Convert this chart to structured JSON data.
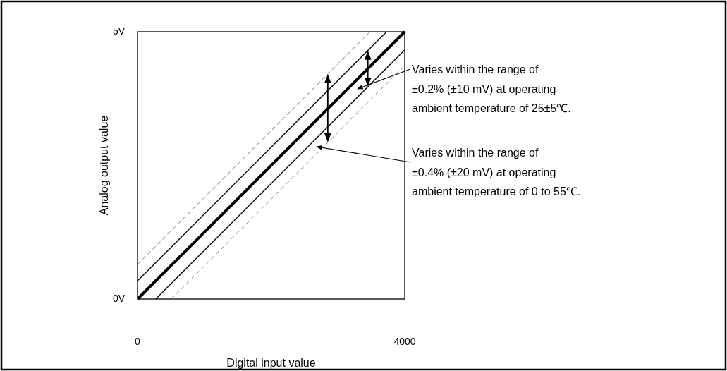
{
  "chart_data": {
    "type": "line",
    "xlabel": "Digital input value",
    "ylabel": "Analog output value",
    "xlim": [
      0,
      4000
    ],
    "ylim": [
      0,
      5
    ],
    "xticks": [
      0,
      4000
    ],
    "yticks": [
      {
        "value": 0,
        "label": "0V"
      },
      {
        "value": 5,
        "label": "5V"
      }
    ],
    "grid": false,
    "series": [
      {
        "color": "#000000",
        "x": [
          0,
          4000
        ],
        "values": [
          0,
          5
        ],
        "line_style": "solid"
      },
      {
        "color": "#000000",
        "x": [
          0,
          3728
        ],
        "values": [
          0.34,
          5
        ],
        "line_style": "solid"
      },
      {
        "color": "#000000",
        "x": [
          272,
          4000
        ],
        "values": [
          0,
          4.66
        ],
        "line_style": "solid"
      },
      {
        "color": "#666666",
        "x": [
          0,
          3480
        ],
        "values": [
          0.65,
          5
        ],
        "line_style": "dashed"
      },
      {
        "color": "#666666",
        "x": [
          504,
          4000
        ],
        "values": [
          0,
          4.37
        ],
        "line_style": "dashed"
      }
    ],
    "annotations": [
      "Varies within the range of\n±0.2% (±10 mV) at operating\nambient temperature of 25±5℃.",
      "Varies within the range of\n±0.4% (±20 mV) at operating\nambient temperature of 0 to 55℃."
    ]
  }
}
